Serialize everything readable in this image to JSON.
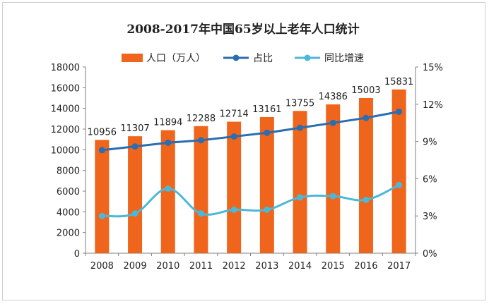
{
  "chart_data": {
    "type": "bar",
    "title": "2008-2017年中国65岁以上老年人口统计",
    "categories": [
      "2008",
      "2009",
      "2010",
      "2011",
      "2012",
      "2013",
      "2014",
      "2015",
      "2016",
      "2017"
    ],
    "series": [
      {
        "name": "人口（万人）",
        "type": "bar",
        "axis": "left",
        "color": "#f0651c",
        "values": [
          10956,
          11307,
          11894,
          12288,
          12714,
          13161,
          13755,
          14386,
          15003,
          15831
        ]
      },
      {
        "name": "占比",
        "type": "line",
        "axis": "right",
        "color": "#2a6db0",
        "values": [
          8.3,
          8.6,
          8.9,
          9.1,
          9.4,
          9.7,
          10.1,
          10.5,
          10.9,
          11.4
        ]
      },
      {
        "name": "同比增速",
        "type": "line",
        "axis": "right",
        "color": "#4bb8d9",
        "values": [
          3.0,
          3.2,
          5.2,
          3.2,
          3.5,
          3.5,
          4.5,
          4.6,
          4.3,
          5.5
        ]
      }
    ],
    "y_left": {
      "ylim": [
        0,
        18000
      ],
      "ticks": [
        0,
        2000,
        4000,
        6000,
        8000,
        10000,
        12000,
        14000,
        16000,
        18000
      ]
    },
    "y_right": {
      "ylim": [
        0,
        15
      ],
      "ticks": [
        "0%",
        "3%",
        "6%",
        "9%",
        "12%",
        "15%"
      ]
    },
    "data_labels": [
      "10956",
      "11307",
      "11894",
      "12288",
      "12714",
      "13161",
      "13755",
      "14386",
      "15003",
      "15831"
    ],
    "grid": false,
    "legend_position": "top-center"
  }
}
